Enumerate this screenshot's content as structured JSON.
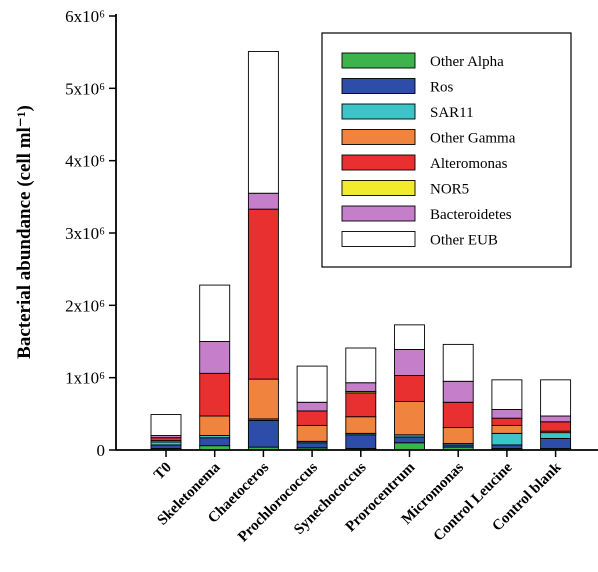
{
  "chart_data": {
    "type": "bar",
    "stacked": true,
    "ylabel": "Bacterial abundance (cell ml⁻¹)",
    "xlabel": "",
    "ylim": [
      0,
      6000000
    ],
    "yticks": [
      {
        "value": 0,
        "label": "0"
      },
      {
        "value": 1000000,
        "label": "1x10⁶"
      },
      {
        "value": 2000000,
        "label": "2x10⁶"
      },
      {
        "value": 3000000,
        "label": "3x10⁶"
      },
      {
        "value": 4000000,
        "label": "4x10⁶"
      },
      {
        "value": 5000000,
        "label": "5x10⁶"
      },
      {
        "value": 6000000,
        "label": "6x10⁶"
      }
    ],
    "categories": [
      "T0",
      "Skeletonema",
      "Chaetoceros",
      "Prochlorococcus",
      "Synechococcus",
      "Prorocentrum",
      "Micromonas",
      "Control Leucine",
      "Control blank"
    ],
    "series": [
      {
        "name": "Other Alpha",
        "color": "#3cb44b",
        "values": [
          20000,
          60000,
          40000,
          30000,
          20000,
          100000,
          40000,
          20000,
          20000
        ]
      },
      {
        "name": "Ros",
        "color": "#2e4da8",
        "values": [
          50000,
          110000,
          370000,
          70000,
          190000,
          80000,
          30000,
          50000,
          140000
        ]
      },
      {
        "name": "SAR11",
        "color": "#3dc4c9",
        "values": [
          40000,
          30000,
          20000,
          20000,
          20000,
          30000,
          20000,
          160000,
          80000
        ]
      },
      {
        "name": "Other Gamma",
        "color": "#f0843e",
        "values": [
          20000,
          270000,
          550000,
          220000,
          230000,
          460000,
          220000,
          110000,
          20000
        ]
      },
      {
        "name": "Alteromonas",
        "color": "#e83030",
        "values": [
          40000,
          590000,
          2350000,
          200000,
          330000,
          360000,
          350000,
          100000,
          130000
        ]
      },
      {
        "name": "NOR5",
        "color": "#f2ea2c",
        "values": [
          0,
          0,
          0,
          0,
          20000,
          0,
          0,
          0,
          0
        ]
      },
      {
        "name": "Bacteroidetes",
        "color": "#c57ec9",
        "values": [
          30000,
          440000,
          220000,
          120000,
          120000,
          360000,
          290000,
          120000,
          80000
        ]
      },
      {
        "name": "Other EUB",
        "color": "#ffffff",
        "values": [
          290000,
          780000,
          1960000,
          500000,
          480000,
          340000,
          510000,
          410000,
          500000
        ]
      }
    ]
  }
}
